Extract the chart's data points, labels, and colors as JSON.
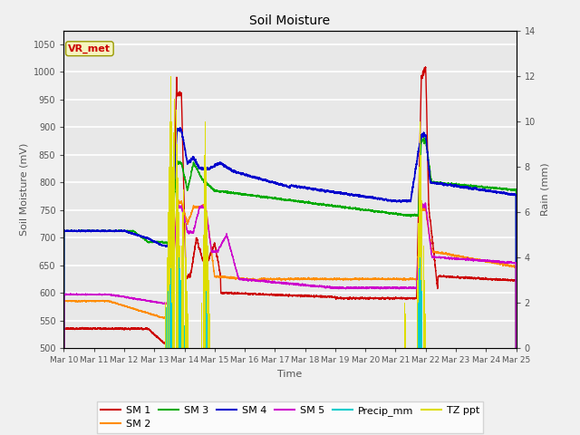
{
  "title": "Soil Moisture",
  "xlabel": "Time",
  "ylabel_left": "Soil Moisture (mV)",
  "ylabel_right": "Rain (mm)",
  "ylim_left": [
    500,
    1075
  ],
  "ylim_right": [
    0,
    14
  ],
  "yticks_left": [
    500,
    550,
    600,
    650,
    700,
    750,
    800,
    850,
    900,
    950,
    1000,
    1050
  ],
  "yticks_right": [
    0,
    2,
    4,
    6,
    8,
    10,
    12,
    14
  ],
  "xtick_labels": [
    "Mar 10",
    "Mar 11",
    "Mar 12",
    "Mar 13",
    "Mar 14",
    "Mar 15",
    "Mar 16",
    "Mar 17",
    "Mar 18",
    "Mar 19",
    "Mar 20",
    "Mar 21",
    "Mar 22",
    "Mar 23",
    "Mar 24",
    "Mar 25"
  ],
  "colors": {
    "SM1": "#cc0000",
    "SM2": "#ff8c00",
    "SM3": "#00aa00",
    "SM4": "#0000cc",
    "SM5": "#cc00cc",
    "Precip_mm": "#00cccc",
    "TZ_ppt": "#dddd00"
  },
  "station_label": "VR_met",
  "background_color": "#e8e8e8",
  "fig_background": "#f0f0f0",
  "grid_color": "#ffffff"
}
